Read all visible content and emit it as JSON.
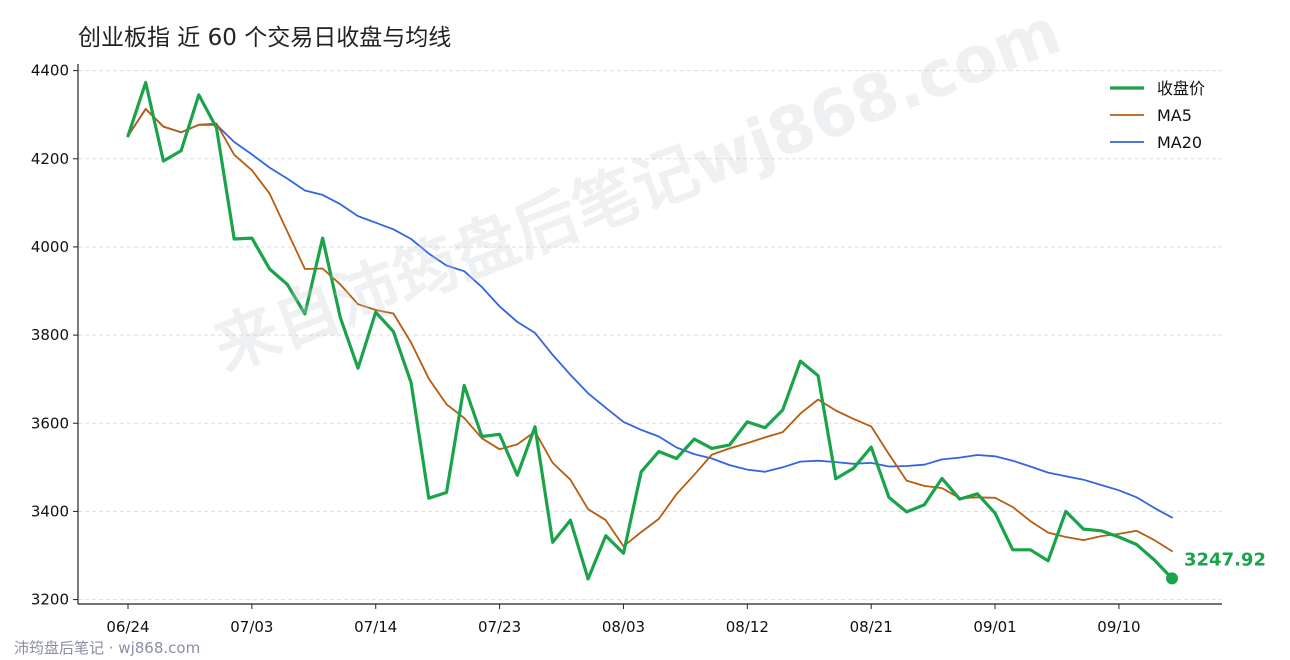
{
  "chart_data": {
    "type": "line",
    "title": "创业板指 近 60 个交易日收盘与均线",
    "xlabel": "",
    "ylabel": "",
    "ylim": [
      3190,
      4415
    ],
    "yticks": [
      3200,
      3400,
      3600,
      3800,
      4000,
      4200,
      4400
    ],
    "xticks": [
      "06/24",
      "07/03",
      "07/14",
      "07/23",
      "08/03",
      "08/12",
      "08/21",
      "09/01",
      "09/10"
    ],
    "xtick_indices": [
      0,
      7,
      14,
      21,
      28,
      35,
      42,
      49,
      56
    ],
    "grid": "horizontal dashed",
    "legend_position": "top-right",
    "series": [
      {
        "name": "收盘价",
        "color": "#1aa34a",
        "values": [
          4252,
          4373,
          4195,
          4218,
          4345,
          4270,
          4018,
          4020,
          3950,
          3915,
          3848,
          4020,
          3840,
          3725,
          3852,
          3808,
          3692,
          3430,
          3443,
          3686,
          3570,
          3575,
          3482,
          3592,
          3330,
          3380,
          3247,
          3345,
          3305,
          3490,
          3536,
          3520,
          3564,
          3543,
          3551,
          3603,
          3590,
          3630,
          3741,
          3708,
          3474,
          3498,
          3546,
          3432,
          3399,
          3415,
          3475,
          3428,
          3440,
          3396,
          3313,
          3313,
          3288,
          3400,
          3360,
          3356,
          3342,
          3325,
          3290,
          3248
        ]
      },
      {
        "name": "MA5",
        "color": "#b85c10",
        "values": [
          4252,
          4313,
          4273,
          4260,
          4277,
          4280,
          4209,
          4174,
          4121,
          4035,
          3950,
          3951,
          3915,
          3870,
          3857,
          3849,
          3783,
          3701,
          3643,
          3612,
          3566,
          3541,
          3552,
          3581,
          3510,
          3472,
          3405,
          3380,
          3321,
          3353,
          3383,
          3439,
          3483,
          3529,
          3543,
          3555,
          3568,
          3580,
          3622,
          3654,
          3629,
          3610,
          3593,
          3530,
          3470,
          3458,
          3453,
          3430,
          3432,
          3431,
          3410,
          3378,
          3352,
          3342,
          3335,
          3344,
          3349,
          3356,
          3335,
          3310
        ]
      },
      {
        "name": "MA20",
        "color": "#3366dd",
        "values": [
          4252,
          4313,
          4273,
          4260,
          4277,
          4277,
          4238,
          4210,
          4180,
          4155,
          4128,
          4118,
          4097,
          4070,
          4055,
          4040,
          4018,
          3985,
          3958,
          3945,
          3909,
          3865,
          3830,
          3805,
          3755,
          3710,
          3668,
          3635,
          3603,
          3585,
          3570,
          3545,
          3530,
          3520,
          3505,
          3495,
          3490,
          3500,
          3513,
          3515,
          3512,
          3508,
          3510,
          3502,
          3503,
          3506,
          3518,
          3522,
          3528,
          3525,
          3515,
          3502,
          3488,
          3480,
          3472,
          3460,
          3448,
          3432,
          3408,
          3386
        ]
      }
    ],
    "annotations": [
      {
        "series": "收盘价",
        "index": 59,
        "text": "3247.92"
      }
    ]
  },
  "footer": {
    "source_text": "沛筠盘后笔记 · wj868.com"
  },
  "watermark": {
    "text": "来自沛筠盘后笔记wj868.com"
  }
}
